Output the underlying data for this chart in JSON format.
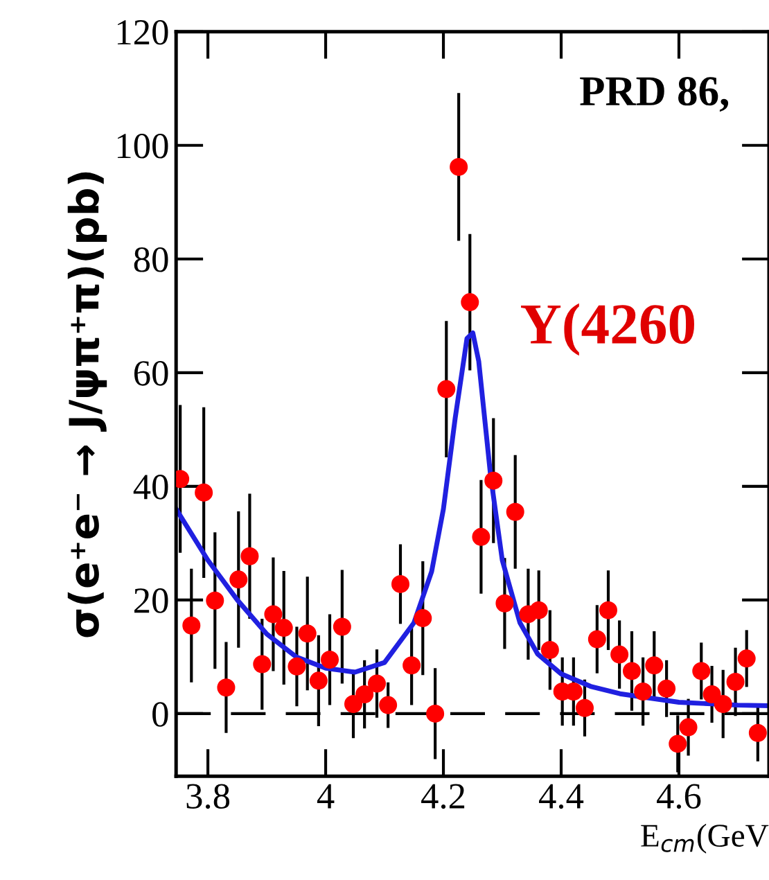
{
  "chart_data": {
    "type": "scatter",
    "xlabel": "E$_{cm}$(GeV",
    "ylabel": "σ(e⁺e⁻ → J/ψπ⁺π)(pb)",
    "annotations": [
      "PRD 86,",
      "Y(4260"
    ],
    "xlim": [
      3.746,
      4.753
    ],
    "ylim": [
      -11,
      120
    ],
    "xticks": [
      3.8,
      {
        "value": 4.0,
        "label": "4"
      },
      4.2,
      4.4,
      4.6
    ],
    "yticks": [
      0,
      20,
      40,
      60,
      80,
      100,
      120
    ],
    "marker": "circle",
    "grid": false,
    "legend": false,
    "ref_lines": [
      {
        "axis": "y",
        "value": 0,
        "line_style": "dashed",
        "color": "#000000"
      }
    ],
    "series": [
      {
        "color": "#ff0000",
        "x": [
          3.753,
          3.772,
          3.793,
          3.812,
          3.831,
          3.852,
          3.871,
          3.892,
          3.911,
          3.929,
          3.951,
          3.969,
          3.988,
          4.007,
          4.028,
          4.047,
          4.066,
          4.087,
          4.106,
          4.127,
          4.146,
          4.165,
          4.186,
          4.205,
          4.226,
          4.245,
          4.264,
          4.285,
          4.304,
          4.322,
          4.344,
          4.362,
          4.381,
          4.402,
          4.421,
          4.44,
          4.461,
          4.48,
          4.499,
          4.52,
          4.539,
          4.558,
          4.579,
          4.598,
          4.616,
          4.638,
          4.656,
          4.675,
          4.696,
          4.715,
          4.734
        ],
        "values": [
          41.3,
          15.5,
          38.9,
          19.9,
          4.6,
          23.6,
          27.7,
          8.7,
          17.5,
          15.1,
          8.3,
          14.1,
          5.8,
          9.5,
          15.3,
          1.7,
          3.4,
          5.3,
          1.5,
          22.8,
          8.5,
          16.8,
          0,
          57.1,
          96.2,
          72.4,
          31.1,
          41.0,
          19.4,
          35.5,
          17.5,
          18.2,
          11.2,
          3.9,
          3.9,
          1.0,
          13.1,
          18.2,
          10.4,
          7.5,
          3.9,
          8.5,
          4.4,
          -5.3,
          -2.4,
          7.5,
          3.4,
          1.7,
          5.6,
          9.7,
          -3.4
        ],
        "errors": [
          13,
          10,
          15,
          12,
          8,
          12,
          11,
          8,
          10,
          10,
          7,
          10,
          8,
          8,
          10,
          6,
          6,
          6,
          4,
          7,
          7,
          10,
          8,
          12,
          13,
          12,
          10,
          11,
          8,
          10,
          8,
          7,
          7,
          6,
          6,
          5,
          6,
          7,
          6,
          7,
          6,
          6,
          5,
          5,
          5,
          5,
          5,
          6,
          6,
          5,
          5
        ]
      },
      {
        "type": "line",
        "color": "#2020e0",
        "line_style": "solid",
        "marker": "none",
        "x": [
          3.746,
          3.8,
          3.85,
          3.9,
          3.95,
          4.0,
          4.05,
          4.1,
          4.15,
          4.18,
          4.2,
          4.22,
          4.24,
          4.25,
          4.26,
          4.28,
          4.3,
          4.33,
          4.36,
          4.4,
          4.45,
          4.5,
          4.6,
          4.7,
          4.753
        ],
        "values": [
          36,
          27,
          20,
          14,
          10,
          8,
          7.3,
          9,
          16,
          25,
          36,
          52,
          66,
          67,
          62,
          42,
          27,
          16,
          10.5,
          7,
          4.8,
          3.5,
          2,
          1.5,
          1.4
        ]
      }
    ]
  }
}
